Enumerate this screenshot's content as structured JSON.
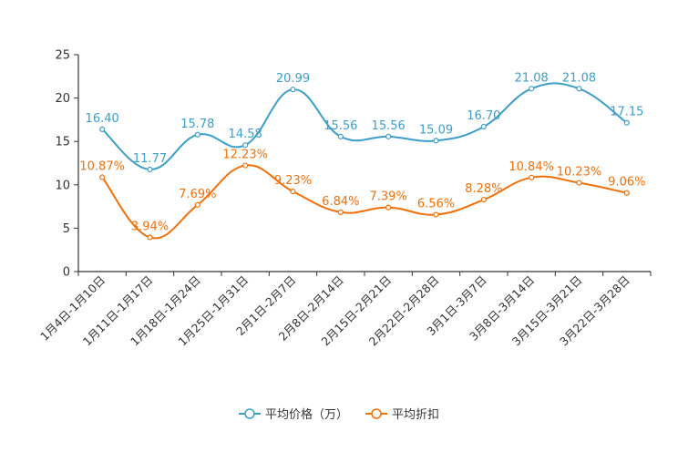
{
  "chart_data": {
    "type": "line",
    "title": "",
    "xlabel": "",
    "ylabel": "",
    "ylim": [
      0,
      25
    ],
    "yticks": [
      0,
      5,
      10,
      15,
      20,
      25
    ],
    "categories": [
      "1月4日-1月10日",
      "1月11日-1月17日",
      "1月18日-1月24日",
      "1月25日-1月31日",
      "2月1日-2月7日",
      "2月8日-2月14日",
      "2月15日-2月21日",
      "2月22日-2月28日",
      "3月1日-3月7日",
      "3月8日-3月14日",
      "3月15日-3月21日",
      "3月22日-3月28日"
    ],
    "series": [
      {
        "name": "平均价格（万）",
        "color": "#3d9ecb",
        "values": [
          16.4,
          11.77,
          15.78,
          14.58,
          20.99,
          15.56,
          15.56,
          15.09,
          16.7,
          21.08,
          21.08,
          17.15
        ],
        "labels": [
          "16.40",
          "11.77",
          "15.78",
          "14.58",
          "20.99",
          "15.56",
          "15.56",
          "15.09",
          "16.70",
          "21.08",
          "21.08",
          "17.15"
        ]
      },
      {
        "name": "平均折扣",
        "color": "#f2700a",
        "values": [
          10.87,
          3.94,
          7.69,
          12.23,
          9.23,
          6.84,
          7.39,
          6.56,
          8.28,
          10.84,
          10.23,
          9.06
        ],
        "labels": [
          "10.87%",
          "3.94%",
          "7.69%",
          "12.23%",
          "9.23%",
          "6.84%",
          "7.39%",
          "6.56%",
          "8.28%",
          "10.84%",
          "10.23%",
          "9.06%"
        ]
      }
    ],
    "legend": "bottom-center",
    "grid": false
  }
}
